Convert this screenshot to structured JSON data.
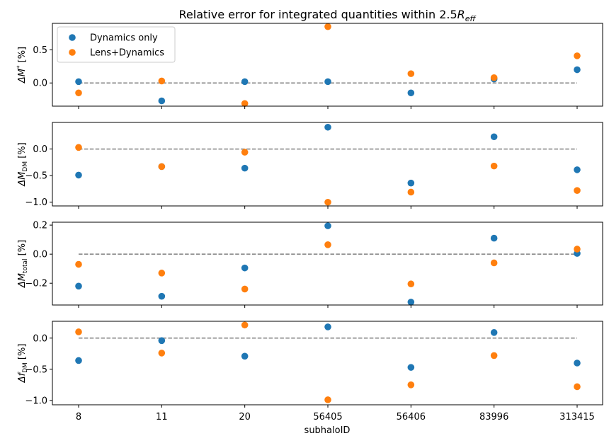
{
  "chart_data": {
    "type": "scatter",
    "title": "Relative error for integrated quantities within 2.5",
    "title_math": "R",
    "title_math_sub": "eff",
    "xlabel": "subhaloID",
    "categories": [
      "8",
      "11",
      "20",
      "56405",
      "56406",
      "83996",
      "313415"
    ],
    "legend": {
      "placement": "top-left",
      "panel": 0,
      "entries": [
        "Dynamics only",
        "Lens+Dynamics"
      ]
    },
    "colors": {
      "dynamics": "#1f77b4",
      "lens": "#ff7f0e",
      "ref_line": "#808080",
      "axes": "#000000"
    },
    "reference_line": {
      "y": 0,
      "style": "dashed"
    },
    "panels": [
      {
        "ylabel_prefix": "ΔM",
        "ylabel_sup": "*",
        "ylabel_sub": "",
        "ylabel_suffix": " [%]",
        "ylim": [
          -0.35,
          0.9
        ],
        "yticks": [
          0.0,
          0.5
        ],
        "ytick_labels": [
          "0.0",
          "0.5"
        ],
        "series": [
          {
            "name": "Dynamics only",
            "values": [
              0.02,
              -0.27,
              0.02,
              0.02,
              -0.15,
              0.06,
              0.2
            ]
          },
          {
            "name": "Lens+Dynamics",
            "values": [
              -0.15,
              0.03,
              -0.31,
              0.85,
              0.14,
              0.08,
              0.41
            ]
          }
        ]
      },
      {
        "ylabel_prefix": "ΔM",
        "ylabel_sup": "",
        "ylabel_sub": "DM",
        "ylabel_suffix": " [%]",
        "ylim": [
          -1.07,
          0.5
        ],
        "yticks": [
          -1.0,
          -0.5,
          0.0
        ],
        "ytick_labels": [
          "−1.0",
          "−0.5",
          "0.0"
        ],
        "series": [
          {
            "name": "Dynamics only",
            "values": [
              -0.49,
              -0.33,
              -0.36,
              0.41,
              -0.64,
              0.23,
              -0.39
            ]
          },
          {
            "name": "Lens+Dynamics",
            "values": [
              0.03,
              -0.33,
              -0.06,
              -1.0,
              -0.81,
              -0.32,
              -0.78
            ]
          }
        ]
      },
      {
        "ylabel_prefix": "ΔM",
        "ylabel_sup": "",
        "ylabel_sub": "total",
        "ylabel_suffix": " [%]",
        "ylim": [
          -0.35,
          0.22
        ],
        "yticks": [
          -0.2,
          0.0,
          0.2
        ],
        "ytick_labels": [
          "−0.2",
          "0.0",
          "0.2"
        ],
        "series": [
          {
            "name": "Dynamics only",
            "values": [
              -0.22,
              -0.29,
              -0.095,
              0.195,
              -0.33,
              0.11,
              0.005
            ]
          },
          {
            "name": "Lens+Dynamics",
            "values": [
              -0.07,
              -0.13,
              -0.24,
              0.065,
              -0.205,
              -0.06,
              0.035
            ]
          }
        ]
      },
      {
        "ylabel_prefix": "Δf",
        "ylabel_sup": "",
        "ylabel_sub": "DM",
        "ylabel_suffix": " [%]",
        "ylim": [
          -1.07,
          0.27
        ],
        "yticks": [
          -1.0,
          -0.5,
          0.0
        ],
        "ytick_labels": [
          "−1.0",
          "−0.5",
          "0.0"
        ],
        "series": [
          {
            "name": "Dynamics only",
            "values": [
              -0.36,
              -0.04,
              -0.29,
              0.18,
              -0.47,
              0.09,
              -0.4
            ]
          },
          {
            "name": "Lens+Dynamics",
            "values": [
              0.1,
              -0.24,
              0.21,
              -0.99,
              -0.75,
              -0.28,
              -0.78
            ]
          }
        ]
      }
    ]
  }
}
